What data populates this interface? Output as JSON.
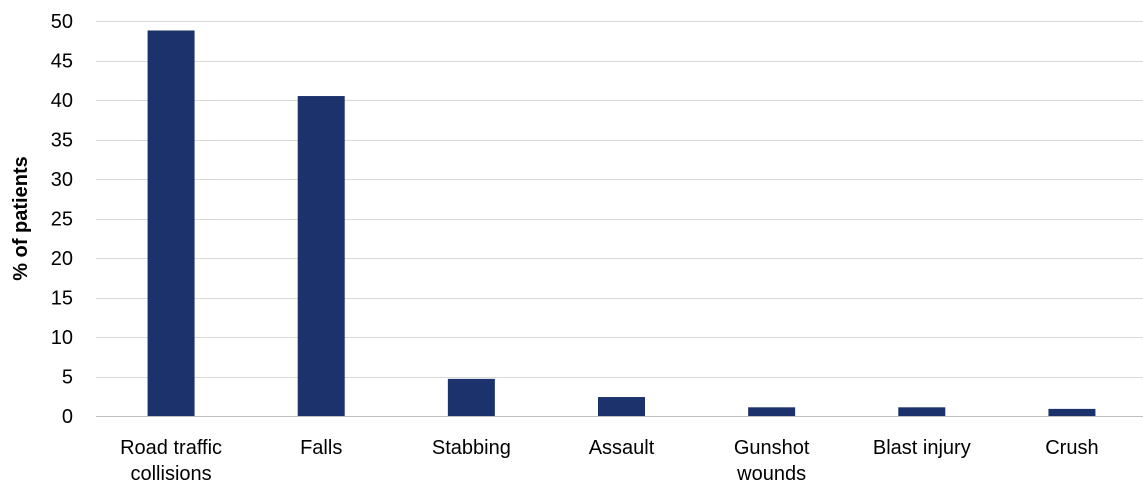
{
  "chart_data": {
    "type": "bar",
    "title": "",
    "xlabel": "",
    "ylabel": "% of patients",
    "categories": [
      [
        "Road traffic",
        "collisions"
      ],
      [
        "Falls"
      ],
      [
        "Stabbing"
      ],
      [
        "Assault"
      ],
      [
        "Gunshot",
        "wounds"
      ],
      [
        "Blast injury"
      ],
      [
        "Crush"
      ]
    ],
    "values": [
      48.8,
      40.5,
      4.7,
      2.4,
      1.1,
      1.1,
      0.9
    ],
    "ylim": [
      0,
      50
    ],
    "yticks": [
      0,
      5,
      10,
      15,
      20,
      25,
      30,
      35,
      40,
      45,
      50
    ],
    "grid": true,
    "legend": "none",
    "bar_color": "#1c326c",
    "grid_color": "#d9d9d9",
    "axis_color": "#bfbfbf"
  }
}
